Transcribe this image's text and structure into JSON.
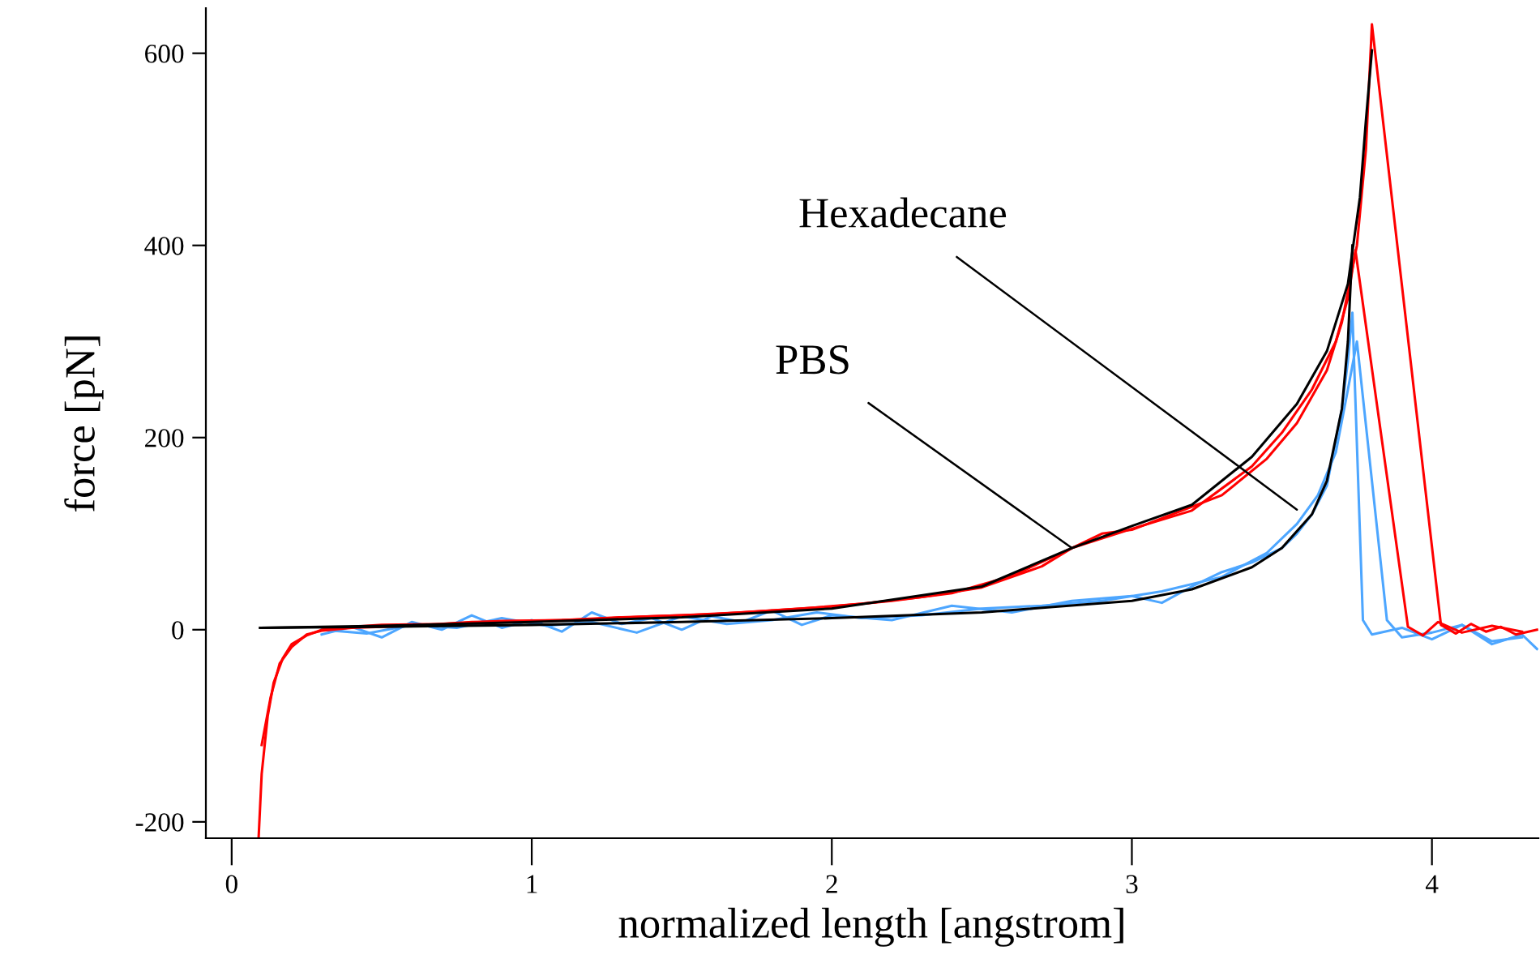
{
  "chart_data": {
    "type": "line",
    "xlabel": "normalized length [angstrom]",
    "ylabel": "force [pN]",
    "xlim": [
      -0.086,
      4.355
    ],
    "ylim": [
      -217,
      647
    ],
    "xticks": [
      0,
      1,
      2,
      3,
      4
    ],
    "yticks": [
      -200,
      0,
      200,
      400,
      600
    ],
    "grid": false,
    "legend": false,
    "marker": "none",
    "line_style": "solid",
    "annotations": [
      {
        "text": "Hexadecane",
        "x": 3.55,
        "y": 125
      },
      {
        "text": "PBS",
        "x": 2.8,
        "y": 85
      }
    ],
    "series": [
      {
        "color": "#4da6ff",
        "x": [
          0.3,
          0.4,
          0.5,
          0.6,
          0.7,
          0.8,
          0.9,
          1.0,
          1.1,
          1.2,
          1.3,
          1.4,
          1.5,
          1.6,
          1.7,
          1.8,
          1.9,
          2.0,
          2.2,
          2.4,
          2.6,
          2.8,
          3.0,
          3.1,
          3.2,
          3.3,
          3.4,
          3.5,
          3.55,
          3.6,
          3.65,
          3.7,
          3.72,
          3.735,
          3.77,
          3.8,
          3.9,
          4.0,
          4.1,
          4.2,
          4.3,
          4.35
        ],
        "values": [
          -5,
          3,
          -8,
          8,
          0,
          15,
          2,
          10,
          -2,
          18,
          6,
          12,
          0,
          14,
          8,
          20,
          5,
          15,
          10,
          25,
          18,
          30,
          35,
          28,
          45,
          60,
          70,
          85,
          100,
          120,
          150,
          230,
          280,
          330,
          10,
          -5,
          2,
          -10,
          5,
          -15,
          -5,
          -20
        ]
      },
      {
        "color": "#4da6ff",
        "x": [
          0.3,
          0.45,
          0.6,
          0.75,
          0.9,
          1.05,
          1.2,
          1.35,
          1.5,
          1.65,
          1.8,
          1.95,
          2.1,
          2.3,
          2.5,
          2.7,
          2.9,
          3.1,
          3.3,
          3.45,
          3.55,
          3.62,
          3.68,
          3.72,
          3.75,
          3.85,
          3.9,
          4.0,
          4.1,
          4.2,
          4.3
        ],
        "values": [
          0,
          -4,
          5,
          2,
          12,
          4,
          8,
          -3,
          14,
          6,
          10,
          18,
          12,
          15,
          22,
          25,
          30,
          40,
          55,
          80,
          110,
          140,
          185,
          250,
          300,
          10,
          -8,
          -3,
          5,
          -12,
          -8
        ]
      },
      {
        "color": "#ff0000",
        "x": [
          0.09,
          0.1,
          0.12,
          0.14,
          0.17,
          0.2,
          0.25,
          0.3,
          0.4,
          0.5,
          0.7,
          0.9,
          1.1,
          1.3,
          1.5,
          1.7,
          1.9,
          2.1,
          2.3,
          2.5,
          2.7,
          2.8,
          2.9,
          3.0,
          3.3,
          3.45,
          3.55,
          3.65,
          3.7,
          3.75,
          3.78,
          3.8,
          4.03,
          4.08,
          4.13,
          4.18,
          4.23,
          4.28,
          4.35
        ],
        "values": [
          -215,
          -150,
          -90,
          -55,
          -30,
          -15,
          -6,
          0,
          3,
          5,
          6,
          9,
          10,
          13,
          15,
          18,
          22,
          27,
          34,
          44,
          66,
          85,
          100,
          104,
          140,
          178,
          215,
          270,
          320,
          400,
          500,
          630,
          5,
          -4,
          6,
          -2,
          3,
          -5,
          0
        ]
      },
      {
        "color": "#ff0000",
        "x": [
          0.1,
          0.13,
          0.16,
          0.2,
          0.25,
          0.3,
          0.4,
          0.6,
          0.8,
          1.0,
          1.2,
          1.4,
          1.6,
          1.8,
          2.0,
          2.2,
          2.4,
          2.6,
          2.8,
          3.0,
          3.2,
          3.4,
          3.5,
          3.6,
          3.68,
          3.72,
          3.745,
          3.92,
          3.97,
          4.02,
          4.1,
          4.2,
          4.3
        ],
        "values": [
          -120,
          -70,
          -35,
          -18,
          -5,
          -1,
          2,
          4,
          8,
          9,
          11,
          14,
          16,
          20,
          24,
          30,
          38,
          56,
          85,
          105,
          124,
          170,
          205,
          250,
          300,
          345,
          395,
          3,
          -6,
          8,
          -3,
          4,
          -2
        ]
      },
      {
        "color": "#000000",
        "x": [
          0.095,
          0.5,
          1,
          1.5,
          2,
          2.5,
          2.8,
          3.0,
          3.2,
          3.4,
          3.55,
          3.65,
          3.72,
          3.76,
          3.78,
          3.8
        ],
        "values": [
          2,
          4,
          8,
          13,
          22,
          45,
          85,
          108,
          130,
          180,
          235,
          290,
          360,
          450,
          530,
          603
        ]
      },
      {
        "color": "#000000",
        "x": [
          0.095,
          0.5,
          1,
          1.5,
          2,
          2.5,
          3.0,
          3.2,
          3.4,
          3.5,
          3.6,
          3.65,
          3.7,
          3.72,
          3.735
        ],
        "values": [
          2,
          3,
          5,
          8,
          12,
          18,
          30,
          42,
          65,
          85,
          120,
          155,
          230,
          300,
          400
        ]
      }
    ]
  }
}
